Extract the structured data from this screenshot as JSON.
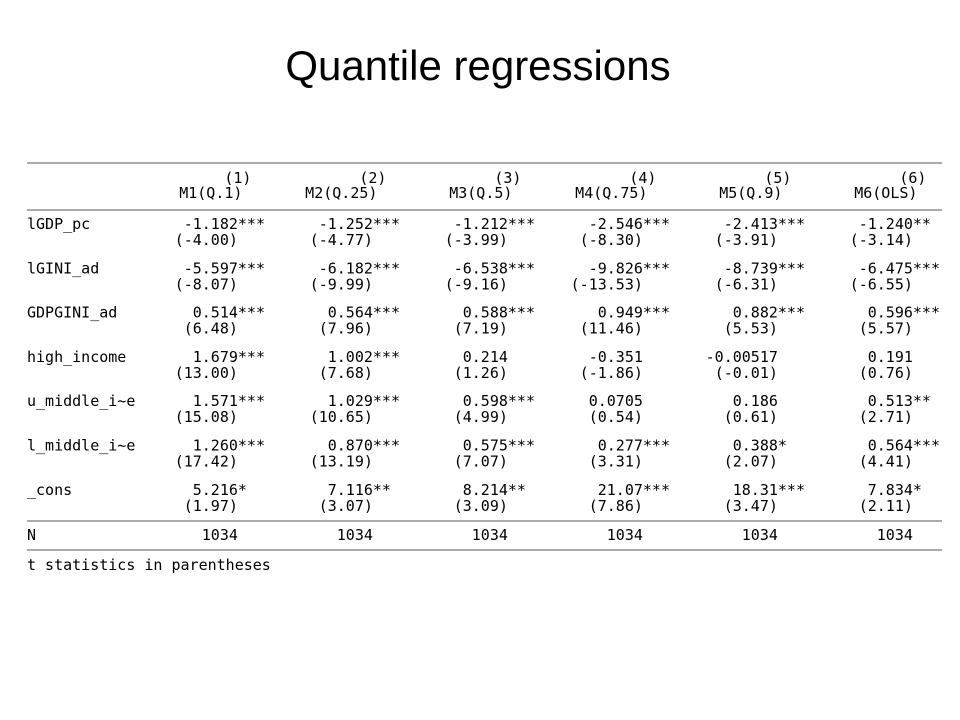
{
  "title": "Quantile regressions",
  "table": {
    "header": {
      "numbers": [
        "(1)",
        "(2)",
        "(3)",
        "(4)",
        "(5)",
        "(6)"
      ],
      "models": [
        "M1(Q.1)",
        "M2(Q.25)",
        "M3(Q.5)",
        "M4(Q.75)",
        "M5(Q.9)",
        "M6(OLS)"
      ]
    },
    "rows": [
      {
        "label": "lGDP_pc",
        "coefs": [
          "-1.182***",
          "-1.252***",
          "-1.212***",
          "-2.546***",
          "-2.413***",
          "-1.240**"
        ],
        "tstats": [
          "(-4.00)",
          "(-4.77)",
          "(-3.99)",
          "(-8.30)",
          "(-3.91)",
          "(-3.14)"
        ]
      },
      {
        "label": "lGINI_ad",
        "coefs": [
          "-5.597***",
          "-6.182***",
          "-6.538***",
          "-9.826***",
          "-8.739***",
          "-6.475***"
        ],
        "tstats": [
          "(-8.07)",
          "(-9.99)",
          "(-9.16)",
          "(-13.53)",
          "(-6.31)",
          "(-6.55)"
        ]
      },
      {
        "label": "GDPGINI_ad",
        "coefs": [
          "0.514***",
          "0.564***",
          "0.588***",
          "0.949***",
          "0.882***",
          "0.596***"
        ],
        "tstats": [
          "(6.48)",
          "(7.96)",
          "(7.19)",
          "(11.46)",
          "(5.53)",
          "(5.57)"
        ]
      },
      {
        "label": "high_income",
        "coefs": [
          "1.679***",
          "1.002***",
          "0.214",
          "-0.351",
          "-0.00517",
          "0.191"
        ],
        "tstats": [
          "(13.00)",
          "(7.68)",
          "(1.26)",
          "(-1.86)",
          "(-0.01)",
          "(0.76)"
        ]
      },
      {
        "label": "u_middle_i~e",
        "coefs": [
          "1.571***",
          "1.029***",
          "0.598***",
          "0.0705",
          "0.186",
          "0.513**"
        ],
        "tstats": [
          "(15.08)",
          "(10.65)",
          "(4.99)",
          "(0.54)",
          "(0.61)",
          "(2.71)"
        ]
      },
      {
        "label": "l_middle_i~e",
        "coefs": [
          "1.260***",
          "0.870***",
          "0.575***",
          "0.277***",
          "0.388*",
          "0.564***"
        ],
        "tstats": [
          "(17.42)",
          "(13.19)",
          "(7.07)",
          "(3.31)",
          "(2.07)",
          "(4.41)"
        ]
      },
      {
        "label": "_cons",
        "coefs": [
          "5.216*",
          "7.116**",
          "8.214**",
          "21.07***",
          "18.31***",
          "7.834*"
        ],
        "tstats": [
          "(1.97)",
          "(3.07)",
          "(3.09)",
          "(7.86)",
          "(3.47)",
          "(2.11)"
        ]
      }
    ],
    "n_row": {
      "label": "N",
      "values": [
        "1034",
        "1034",
        "1034",
        "1034",
        "1034",
        "1034"
      ]
    },
    "note": "t statistics in parentheses"
  }
}
